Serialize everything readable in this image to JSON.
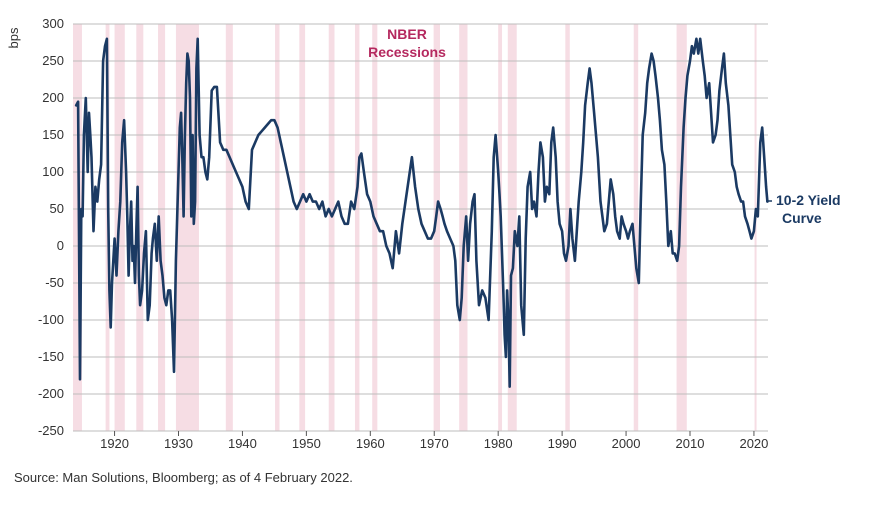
{
  "chart_data": {
    "type": "line",
    "ylabel": "bps",
    "ylim": [
      -250,
      300
    ],
    "yticks": [
      300,
      250,
      200,
      150,
      100,
      50,
      0,
      -50,
      -100,
      -150,
      -200,
      -250
    ],
    "xlim": [
      1913.5,
      2022.2
    ],
    "xticks": [
      1920,
      1930,
      1940,
      1950,
      1960,
      1970,
      1980,
      1990,
      2000,
      2010,
      2020
    ],
    "grid": "horizontal",
    "recession_label": [
      "NBER",
      "Recessions"
    ],
    "series_label": [
      "10-2 Yield",
      "Curve"
    ],
    "recessions": [
      [
        1913.0,
        1914.9
      ],
      [
        1918.6,
        1919.2
      ],
      [
        1920.0,
        1921.6
      ],
      [
        1923.4,
        1924.5
      ],
      [
        1926.8,
        1927.9
      ],
      [
        1929.6,
        1933.2
      ],
      [
        1937.4,
        1938.5
      ],
      [
        1945.1,
        1945.8
      ],
      [
        1948.9,
        1949.8
      ],
      [
        1953.5,
        1954.4
      ],
      [
        1957.6,
        1958.3
      ],
      [
        1960.3,
        1961.1
      ],
      [
        1969.9,
        1970.9
      ],
      [
        1973.9,
        1975.2
      ],
      [
        1980.0,
        1980.6
      ],
      [
        1981.5,
        1982.9
      ],
      [
        1990.5,
        1991.2
      ],
      [
        2001.2,
        2001.9
      ],
      [
        2007.9,
        2009.5
      ],
      [
        2020.1,
        2020.4
      ]
    ],
    "series": [
      {
        "name": "10-2 Yield Curve",
        "color": "#1b3a63",
        "x": [
          1914.0,
          1914.3,
          1914.6,
          1914.8,
          1915.0,
          1915.2,
          1915.5,
          1915.8,
          1916.0,
          1916.2,
          1916.4,
          1916.7,
          1917.0,
          1917.3,
          1917.6,
          1917.9,
          1918.2,
          1918.5,
          1918.8,
          1919.0,
          1919.2,
          1919.4,
          1919.6,
          1919.8,
          1920.0,
          1920.3,
          1920.6,
          1920.9,
          1921.2,
          1921.5,
          1921.8,
          1922.0,
          1922.2,
          1922.4,
          1922.6,
          1922.8,
          1923.0,
          1923.2,
          1923.4,
          1923.6,
          1923.8,
          1924.0,
          1924.3,
          1924.6,
          1924.9,
          1925.2,
          1925.5,
          1925.8,
          1926.0,
          1926.3,
          1926.6,
          1926.9,
          1927.2,
          1927.5,
          1927.8,
          1928.1,
          1928.4,
          1928.7,
          1929.0,
          1929.3,
          1929.6,
          1929.8,
          1930.0,
          1930.2,
          1930.4,
          1930.6,
          1930.8,
          1931.0,
          1931.2,
          1931.4,
          1931.6,
          1931.8,
          1932.0,
          1932.2,
          1932.4,
          1932.6,
          1932.8,
          1933.0,
          1933.3,
          1933.6,
          1933.9,
          1934.2,
          1934.5,
          1934.8,
          1935.2,
          1935.6,
          1936.0,
          1936.5,
          1937.0,
          1937.5,
          1938.0,
          1938.5,
          1939.0,
          1939.5,
          1940.0,
          1940.5,
          1941.0,
          1941.5,
          1942.0,
          1942.5,
          1943.0,
          1943.5,
          1944.0,
          1944.5,
          1945.0,
          1945.5,
          1946.0,
          1946.5,
          1947.0,
          1947.5,
          1948.0,
          1948.5,
          1949.0,
          1949.5,
          1950.0,
          1950.5,
          1951.0,
          1951.5,
          1952.0,
          1952.5,
          1953.0,
          1953.5,
          1954.0,
          1954.5,
          1955.0,
          1955.5,
          1956.0,
          1956.5,
          1957.0,
          1957.5,
          1958.0,
          1958.3,
          1958.6,
          1959.0,
          1959.5,
          1960.0,
          1960.5,
          1961.0,
          1961.5,
          1962.0,
          1962.5,
          1963.0,
          1963.5,
          1964.0,
          1964.5,
          1965.0,
          1965.5,
          1966.0,
          1966.5,
          1967.0,
          1967.5,
          1968.0,
          1968.5,
          1969.0,
          1969.5,
          1970.0,
          1970.3,
          1970.6,
          1971.0,
          1971.3,
          1971.6,
          1972.0,
          1972.5,
          1973.0,
          1973.3,
          1973.6,
          1974.0,
          1974.3,
          1974.6,
          1975.0,
          1975.3,
          1975.6,
          1976.0,
          1976.3,
          1976.6,
          1977.0,
          1977.5,
          1978.0,
          1978.5,
          1979.0,
          1979.3,
          1979.6,
          1980.0,
          1980.2,
          1980.4,
          1980.6,
          1980.8,
          1981.0,
          1981.2,
          1981.4,
          1981.6,
          1981.8,
          1982.0,
          1982.3,
          1982.6,
          1983.0,
          1983.3,
          1983.6,
          1984.0,
          1984.3,
          1984.6,
          1985.0,
          1985.3,
          1985.6,
          1986.0,
          1986.3,
          1986.6,
          1987.0,
          1987.3,
          1987.6,
          1988.0,
          1988.3,
          1988.6,
          1989.0,
          1989.3,
          1989.6,
          1990.0,
          1990.3,
          1990.6,
          1991.0,
          1991.3,
          1991.6,
          1992.0,
          1992.3,
          1992.6,
          1993.0,
          1993.3,
          1993.6,
          1994.0,
          1994.3,
          1994.6,
          1995.0,
          1995.3,
          1995.6,
          1996.0,
          1996.3,
          1996.6,
          1997.0,
          1997.3,
          1997.6,
          1998.0,
          1998.3,
          1998.6,
          1999.0,
          1999.3,
          1999.6,
          2000.0,
          2000.3,
          2000.6,
          2001.0,
          2001.3,
          2001.6,
          2002.0,
          2002.3,
          2002.6,
          2003.0,
          2003.3,
          2003.6,
          2004.0,
          2004.3,
          2004.6,
          2005.0,
          2005.3,
          2005.6,
          2006.0,
          2006.3,
          2006.6,
          2007.0,
          2007.3,
          2007.6,
          2008.0,
          2008.3,
          2008.6,
          2009.0,
          2009.3,
          2009.6,
          2010.0,
          2010.3,
          2010.6,
          2011.0,
          2011.3,
          2011.6,
          2012.0,
          2012.3,
          2012.6,
          2013.0,
          2013.3,
          2013.6,
          2014.0,
          2014.3,
          2014.6,
          2015.0,
          2015.3,
          2015.6,
          2016.0,
          2016.3,
          2016.6,
          2017.0,
          2017.3,
          2017.6,
          2018.0,
          2018.3,
          2018.6,
          2019.0,
          2019.3,
          2019.6,
          2020.0,
          2020.3,
          2020.6,
          2021.0,
          2021.3,
          2021.6,
          2021.9,
          2022.1
        ],
        "y": [
          190,
          195,
          -180,
          50,
          40,
          150,
          200,
          100,
          180,
          150,
          120,
          20,
          80,
          60,
          90,
          110,
          250,
          270,
          280,
          50,
          -60,
          -110,
          -50,
          -20,
          10,
          -40,
          20,
          60,
          140,
          170,
          100,
          40,
          -40,
          20,
          60,
          -20,
          0,
          -50,
          20,
          80,
          -40,
          -80,
          -60,
          -10,
          20,
          -100,
          -80,
          -10,
          10,
          30,
          -20,
          40,
          -20,
          -40,
          -70,
          -80,
          -60,
          -60,
          -100,
          -170,
          -20,
          40,
          100,
          160,
          180,
          120,
          40,
          150,
          220,
          260,
          250,
          200,
          40,
          150,
          30,
          60,
          240,
          280,
          150,
          120,
          120,
          100,
          90,
          120,
          210,
          215,
          215,
          140,
          130,
          130,
          120,
          110,
          100,
          90,
          80,
          60,
          50,
          130,
          140,
          150,
          155,
          160,
          165,
          170,
          170,
          160,
          140,
          120,
          100,
          80,
          60,
          50,
          60,
          70,
          60,
          70,
          60,
          60,
          50,
          60,
          40,
          50,
          40,
          50,
          60,
          40,
          30,
          30,
          60,
          50,
          80,
          120,
          125,
          100,
          70,
          60,
          40,
          30,
          20,
          20,
          0,
          -10,
          -30,
          20,
          -10,
          30,
          60,
          90,
          120,
          80,
          50,
          30,
          20,
          10,
          10,
          20,
          40,
          60,
          50,
          40,
          30,
          20,
          10,
          0,
          -20,
          -80,
          -100,
          -70,
          0,
          40,
          -20,
          30,
          60,
          70,
          -20,
          -80,
          -60,
          -70,
          -100,
          20,
          120,
          150,
          100,
          70,
          40,
          -10,
          -60,
          -120,
          -150,
          -60,
          -100,
          -190,
          -40,
          -30,
          20,
          0,
          40,
          -80,
          -120,
          10,
          80,
          100,
          50,
          60,
          40,
          100,
          140,
          120,
          60,
          80,
          70,
          140,
          160,
          120,
          60,
          30,
          20,
          -10,
          -20,
          0,
          50,
          10,
          -20,
          20,
          60,
          100,
          140,
          190,
          220,
          240,
          220,
          180,
          150,
          120,
          60,
          40,
          20,
          30,
          60,
          90,
          70,
          40,
          20,
          10,
          40,
          30,
          20,
          10,
          20,
          30,
          0,
          -30,
          -50,
          60,
          150,
          180,
          220,
          240,
          260,
          250,
          230,
          200,
          170,
          130,
          110,
          60,
          0,
          20,
          -10,
          -10,
          -20,
          0,
          80,
          160,
          200,
          230,
          250,
          270,
          260,
          280,
          260,
          280,
          250,
          230,
          200,
          220,
          180,
          140,
          150,
          170,
          210,
          240,
          260,
          220,
          190,
          150,
          110,
          100,
          80,
          70,
          60,
          60,
          40,
          30,
          20,
          10,
          20,
          50,
          40,
          140,
          160,
          120,
          80,
          60
        ]
      }
    ]
  },
  "source": "Source: Man Solutions, Bloomberg; as of 4 February 2022."
}
